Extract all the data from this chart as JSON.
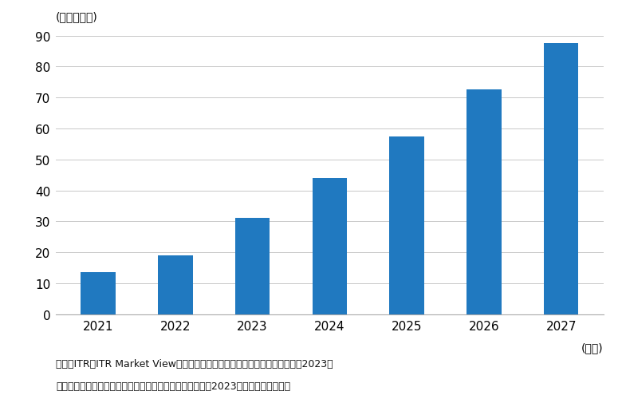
{
  "categories": [
    "2021",
    "2022",
    "2023",
    "2024",
    "2025",
    "2026",
    "2027"
  ],
  "values": [
    13.5,
    19.0,
    31.0,
    44.0,
    57.5,
    72.5,
    87.5
  ],
  "bar_color": "#2079c0",
  "ylim": [
    0,
    90
  ],
  "yticks": [
    0,
    10,
    20,
    30,
    40,
    50,
    60,
    70,
    80,
    90
  ],
  "unit_label": "(単位：億円)",
  "xlabel": "(年度)",
  "background_color": "#ffffff",
  "grid_color": "#c8c8c8",
  "source_line1": "出典：ITR『ITR Market View：対話型アイ・機械学習プラットフォーム市噳2023』",
  "source_line2": "＊ベンダーの売上金額を対象とし、３月期ベースで換算　2023年度以降は予測値。",
  "bar_width": 0.45,
  "tick_fontsize": 11,
  "unit_fontsize": 10,
  "source_fontsize": 9
}
